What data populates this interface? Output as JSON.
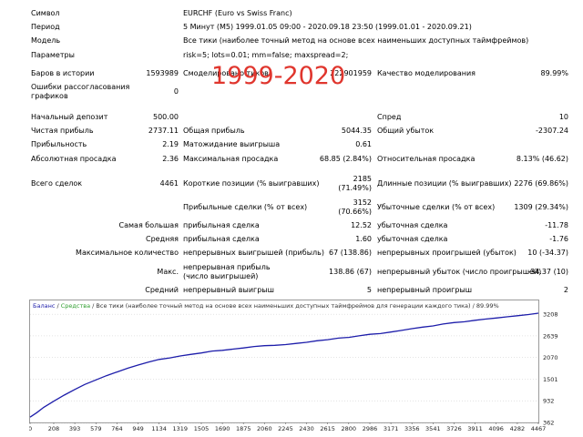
{
  "header": {
    "symbol_label": "Символ",
    "symbol_value": "EURCHF (Euro vs Swiss Franc)",
    "period_label": "Период",
    "period_value": "5 Минут (M5) 1999.01.05 09:00 - 2020.09.18 23:50 (1999.01.01 - 2020.09.21)",
    "model_label": "Модель",
    "model_value": "Все тики (наиболее точный метод на основе всех наименьших доступных таймфреймов)",
    "params_label": "Параметры",
    "params_value": "risk=5; lots=0.01; mm=false; maxspread=2;"
  },
  "overlay_text": "1999-2020",
  "stats": {
    "bars_label": "Баров в истории",
    "bars_value": "1593989",
    "ticks_label": "Смоделировано тиков",
    "ticks_value": "222901959",
    "quality_label": "Качество моделирования",
    "quality_value": "89.99%",
    "errors_label": "Ошибки рассогласования графиков",
    "errors_value": "0",
    "deposit_label": "Начальный депозит",
    "deposit_value": "500.00",
    "spread_label": "Спред",
    "spread_value": "10",
    "net_label": "Чистая прибыль",
    "net_value": "2737.11",
    "gross_profit_label": "Общая прибыль",
    "gross_profit_value": "5044.35",
    "gross_loss_label": "Общий убыток",
    "gross_loss_value": "-2307.24",
    "pf_label": "Прибыльность",
    "pf_value": "2.19",
    "expected_label": "Матожидание выигрыша",
    "expected_value": "0.61",
    "abs_dd_label": "Абсолютная просадка",
    "abs_dd_value": "2.36",
    "max_dd_label": "Максимальная просадка",
    "max_dd_value": "68.85 (2.84%)",
    "rel_dd_label": "Относительная просадка",
    "rel_dd_value": "8.13% (46.62)",
    "total_trades_label": "Всего сделок",
    "total_trades_value": "4461",
    "short_label": "Короткие позиции (% выигравших)",
    "short_value": "2185 (71.49%)",
    "long_label": "Длинные позиции (% выигравших)",
    "long_value": "2276 (69.86%)",
    "profit_trades_label": "Прибыльные сделки (% от всех)",
    "profit_trades_value": "3152 (70.66%)",
    "loss_trades_label": "Убыточные сделки (% от всех)",
    "loss_trades_value": "1309 (29.34%)",
    "largest_label": "Самая большая",
    "largest_profit_label": "прибыльная сделка",
    "largest_profit_value": "12.52",
    "largest_loss_label": "убыточная сделка",
    "largest_loss_value": "-11.78",
    "average_label": "Средняя",
    "avg_profit_label": "прибыльная сделка",
    "avg_profit_value": "1.60",
    "avg_loss_label": "убыточная сделка",
    "avg_loss_value": "-1.76",
    "max_count_label": "Максимальное количество",
    "max_consec_wins_label": "непрерывных выигрышей (прибыль)",
    "max_consec_wins_value": "67 (138.86)",
    "max_consec_losses_label": "непрерывных проигрышей (убыток)",
    "max_consec_losses_value": "10 (-34.37)",
    "max_label": "Макс.",
    "max_consec_profit_label": "непрерывная прибыль (число выигрышей)",
    "max_consec_profit_value": "138.86 (67)",
    "max_consec_loss_label": "непрерывный убыток (число проигрышей)",
    "max_consec_loss_value": "-34.37 (10)",
    "avg_consec_label": "Средний",
    "avg_consec_wins_label": "непрерывный выигрыш",
    "avg_consec_wins_value": "5",
    "avg_consec_losses_label": "непрерывный проигрыш",
    "avg_consec_losses_value": "2"
  },
  "chart_data": {
    "type": "line",
    "legend_balance": "Баланс",
    "legend_sep1": " / ",
    "legend_equity": "Средства",
    "legend_sep2": " / ",
    "legend_desc": "Все тики (наиболее точный метод на основе всех наименьших доступных таймфреймов для генерации каждого тика)",
    "legend_sep3": " / ",
    "legend_quality": "89.99%",
    "xticks": [
      0,
      208,
      393,
      579,
      764,
      949,
      1134,
      1319,
      1505,
      1690,
      1875,
      2060,
      2245,
      2430,
      2615,
      2800,
      2986,
      3171,
      3356,
      3541,
      3726,
      3911,
      4096,
      4282,
      4467
    ],
    "yticks": [
      362,
      932,
      1501,
      2070,
      2639,
      3208
    ],
    "xlim": [
      0,
      4467
    ],
    "ylim": [
      362,
      3260
    ],
    "colors": {
      "balance": "#1d1daa",
      "equity": "#2e9e2e",
      "grid": "#c8c8c8"
    },
    "series": [
      {
        "name": "Баланс",
        "x": [
          0,
          60,
          120,
          208,
          300,
          393,
          480,
          579,
          670,
          764,
          860,
          949,
          1040,
          1134,
          1230,
          1319,
          1410,
          1505,
          1600,
          1690,
          1780,
          1875,
          1970,
          2060,
          2150,
          2245,
          2340,
          2430,
          2520,
          2615,
          2710,
          2800,
          2890,
          2986,
          3080,
          3171,
          3260,
          3356,
          3450,
          3541,
          3630,
          3726,
          3820,
          3911,
          4000,
          4096,
          4190,
          4282,
          4380,
          4467
        ],
        "y": [
          500,
          620,
          760,
          920,
          1080,
          1230,
          1360,
          1480,
          1590,
          1690,
          1790,
          1870,
          1950,
          2020,
          2060,
          2110,
          2150,
          2190,
          2240,
          2260,
          2290,
          2320,
          2360,
          2380,
          2390,
          2410,
          2440,
          2470,
          2510,
          2540,
          2580,
          2600,
          2640,
          2680,
          2700,
          2740,
          2780,
          2830,
          2870,
          2900,
          2950,
          2990,
          3010,
          3050,
          3080,
          3110,
          3140,
          3170,
          3200,
          3237
        ]
      }
    ]
  }
}
